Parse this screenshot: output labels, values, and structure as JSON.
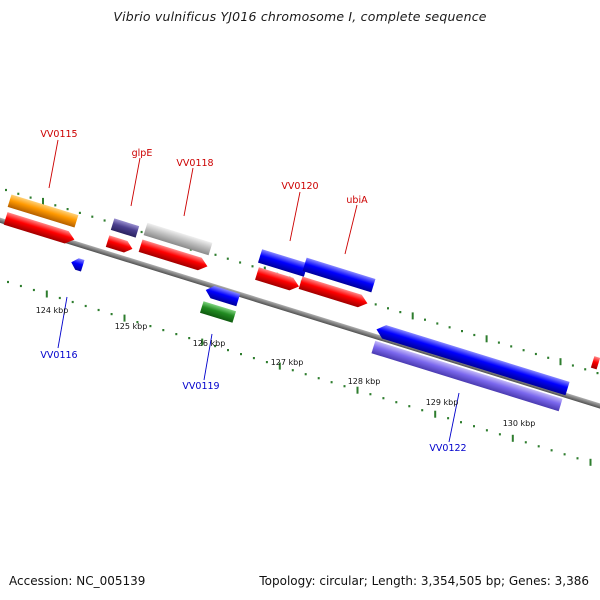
{
  "title": "Vibrio vulnificus YJ016 chromosome I, complete sequence",
  "accession_text": "Accession: NC_005139",
  "topology_text": "Topology: circular; Length: 3,354,505 bp; Genes: 3,386",
  "colors": {
    "backbone": "#808080",
    "tick_marks": "#2e7d2e",
    "forward_label": "#cc0000",
    "reverse_label": "#0000cc"
  },
  "scale_labels": [
    "124 kbp",
    "125 kbp",
    "126 kbp",
    "127 kbp",
    "128 kbp",
    "129 kbp",
    "130 kbp"
  ],
  "gene_labels": {
    "forward": [
      "VV0115",
      "glpE",
      "VV0118",
      "VV0120",
      "ubiA"
    ],
    "reverse": [
      "VV0116",
      "VV0119",
      "VV0122"
    ]
  },
  "features": [
    {
      "id": "VV0115-cog",
      "color": "#ff9900",
      "strand": "+",
      "track": "outer-cog"
    },
    {
      "id": "VV0115-cds",
      "color": "#ff0000",
      "strand": "+",
      "track": "cds"
    },
    {
      "id": "glpE-cog",
      "color": "#4b3f8f",
      "strand": "+",
      "track": "outer-cog"
    },
    {
      "id": "glpE-cds",
      "color": "#ff0000",
      "strand": "+",
      "track": "cds"
    },
    {
      "id": "VV0118-cog",
      "color": "#c0c0c0",
      "strand": "+",
      "track": "outer-cog"
    },
    {
      "id": "VV0118-cds",
      "color": "#ff0000",
      "strand": "+",
      "track": "cds"
    },
    {
      "id": "VV0120-cog",
      "color": "#0000ff",
      "strand": "+",
      "track": "outer-cog"
    },
    {
      "id": "VV0120-cds",
      "color": "#ff0000",
      "strand": "+",
      "track": "cds"
    },
    {
      "id": "ubiA-cog",
      "color": "#0000ff",
      "strand": "+",
      "track": "outer-cog"
    },
    {
      "id": "ubiA-cds",
      "color": "#ff0000",
      "strand": "+",
      "track": "cds"
    },
    {
      "id": "VV0116-cds",
      "color": "#0000ff",
      "strand": "-",
      "track": "cds"
    },
    {
      "id": "VV0119-cds",
      "color": "#0000ff",
      "strand": "-",
      "track": "cds"
    },
    {
      "id": "VV0119-cog",
      "color": "#228b22",
      "strand": "-",
      "track": "inner-cog"
    },
    {
      "id": "VV0122-cds",
      "color": "#0000ff",
      "strand": "-",
      "track": "cds"
    },
    {
      "id": "VV0122-cog",
      "color": "#7b68ee",
      "strand": "-",
      "track": "inner-cog"
    },
    {
      "id": "VV0123-cds",
      "color": "#ff0000",
      "strand": "+",
      "track": "cds"
    }
  ]
}
